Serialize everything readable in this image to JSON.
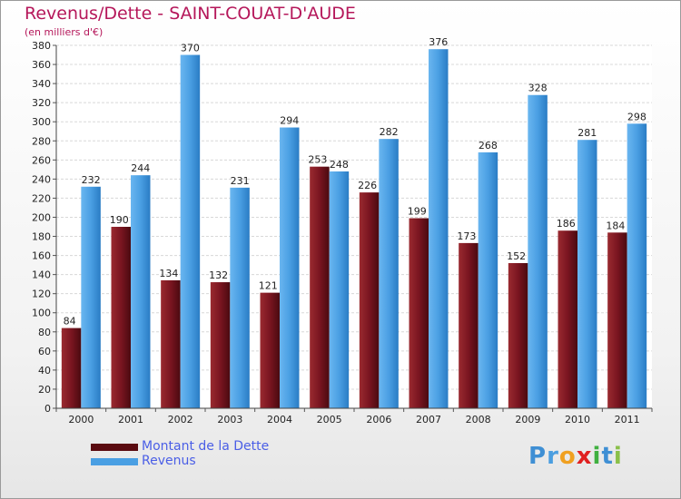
{
  "title": "Revenus/Dette - SAINT-COUAT-D'AUDE",
  "subtitle": "(en milliers d'€)",
  "logo": {
    "letters": [
      {
        "ch": "P",
        "color": "#3f8fd4"
      },
      {
        "ch": "r",
        "color": "#4a9ee0"
      },
      {
        "ch": "o",
        "color": "#f0a020"
      },
      {
        "ch": "x",
        "color": "#e02020"
      },
      {
        "ch": "i",
        "color": "#40b040"
      },
      {
        "ch": "t",
        "color": "#3f8fd4"
      },
      {
        "ch": "i",
        "color": "#8ac04a"
      }
    ]
  },
  "chart_data": {
    "type": "bar",
    "categories": [
      "2000",
      "2001",
      "2002",
      "2003",
      "2004",
      "2005",
      "2006",
      "2007",
      "2008",
      "2009",
      "2010",
      "2011"
    ],
    "series": [
      {
        "name": "Montant de la Dette",
        "color": "#7a1520",
        "values": [
          84,
          190,
          134,
          132,
          121,
          253,
          226,
          199,
          173,
          152,
          186,
          184
        ]
      },
      {
        "name": "Revenus",
        "color": "#4a9fe3",
        "values": [
          232,
          244,
          370,
          231,
          294,
          248,
          282,
          376,
          268,
          328,
          281,
          298
        ]
      }
    ],
    "ylim": [
      0,
      380
    ],
    "yticks": [
      0,
      20,
      40,
      60,
      80,
      100,
      120,
      140,
      160,
      180,
      200,
      220,
      240,
      260,
      280,
      300,
      320,
      340,
      360,
      380
    ],
    "grid": true,
    "legend": "bottom-left"
  }
}
